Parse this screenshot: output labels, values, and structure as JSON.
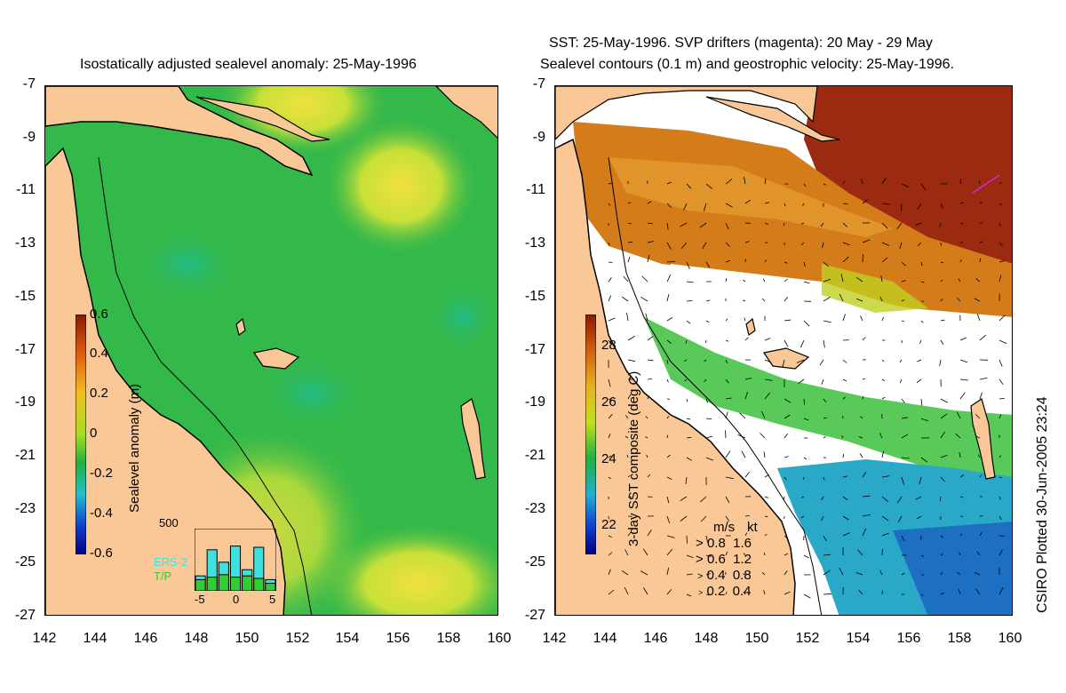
{
  "left_panel": {
    "title": "Isostatically adjusted sealevel anomaly: 25-May-1996",
    "colorbar": {
      "label": "Sealevel anomaly (m)",
      "ticks": [
        "0.6",
        "0.4",
        "0.2",
        "0",
        "-0.2",
        "-0.4",
        "-0.6"
      ],
      "range": [
        -0.6,
        0.6
      ]
    },
    "histogram": {
      "ymax_label": "500",
      "x_ticks": [
        "-5",
        "0",
        "5"
      ],
      "series": [
        {
          "name": "ERS-2",
          "color": "#40e0e0"
        },
        {
          "name": "T/P",
          "color": "#33cc33"
        }
      ],
      "ers2_counts": [
        120,
        330,
        230,
        360,
        170,
        350,
        90
      ],
      "tp_counts": [
        90,
        110,
        130,
        110,
        120,
        100,
        60
      ]
    }
  },
  "right_panel": {
    "title_line1": "SST: 25-May-1996. SVP drifters (magenta): 20 May - 29 May",
    "title_line2": "Sealevel contours (0.1 m) and geostrophic velocity: 25-May-1996.",
    "colorbar": {
      "label": "3-day SST composite (deg C)",
      "ticks": [
        "28",
        "26",
        "24",
        "22"
      ],
      "range": [
        21,
        29.5
      ]
    },
    "velocity_legend": {
      "header_ms": "m/s",
      "header_kt": "kt",
      "rows": [
        {
          "ms": "0.8",
          "kt": "1.6"
        },
        {
          "ms": "0.6",
          "kt": "1.2"
        },
        {
          "ms": "0.4",
          "kt": "0.8"
        },
        {
          "ms": "0.2",
          "kt": "0.4"
        }
      ]
    }
  },
  "axes": {
    "y_ticks": [
      "-7",
      "-9",
      "-11",
      "-13",
      "-15",
      "-17",
      "-19",
      "-21",
      "-23",
      "-25",
      "-27"
    ],
    "x_ticks": [
      "142",
      "144",
      "146",
      "148",
      "150",
      "152",
      "154",
      "156",
      "158",
      "160"
    ],
    "lon_range": [
      142,
      160
    ],
    "lat_range": [
      -27,
      -7
    ]
  },
  "credit": "CSIRO Plotted 30-Jun-2005 23:24",
  "colors": {
    "land": "#fac896",
    "ssh_base": "#33b84a",
    "ssh_high": "#e0e030",
    "coast": "#000000"
  }
}
